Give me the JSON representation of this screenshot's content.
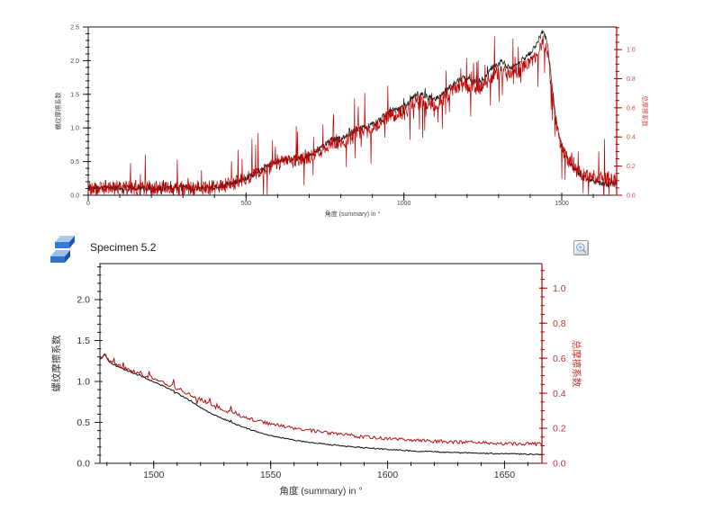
{
  "window": {
    "background": "#ffffff"
  },
  "bottom_panel": {
    "title": "Specimen 5.2",
    "icon": "specimen-cube-icon",
    "zoom_button_icon": "magnifier-plus-icon"
  },
  "chart_data": [
    {
      "id": "top",
      "type": "line",
      "title": "",
      "xlabel": "角度 (summary) in °",
      "ylabel_left": "螺纹摩擦系数",
      "ylabel_right": "总摩擦系数",
      "x_range": [
        0,
        1674
      ],
      "y_left_range": [
        0,
        2.5
      ],
      "y_right_range": [
        0,
        1.155
      ],
      "x_ticks": [
        0,
        500,
        1000,
        1500
      ],
      "x_minor_step": 100,
      "y_left_ticks": [
        0,
        0.5,
        1,
        1.5,
        2,
        2.5
      ],
      "y_left_minor_step": 0.1,
      "y_right_ticks": [
        0,
        0.2,
        0.4,
        0.6,
        0.8,
        1
      ],
      "y_right_minor_step": 0.05,
      "grid": false,
      "legend": "none",
      "colors": {
        "axis": "#1a1a1a",
        "axis_right": "#b40000",
        "tick": "#474747",
        "tick_right": "#d04545"
      },
      "series": [
        {
          "name": "螺纹摩擦系数",
          "axis": "left",
          "color": "#171717",
          "width": 0.7,
          "noise_amp": 0.045,
          "spike_prob": 0.04,
          "spike_amp": 0.16,
          "step": 1.3,
          "seed": 11,
          "trend": [
            [
              0,
              0.11
            ],
            [
              60,
              0.105
            ],
            [
              120,
              0.115
            ],
            [
              180,
              0.105
            ],
            [
              240,
              0.11
            ],
            [
              300,
              0.115
            ],
            [
              360,
              0.11
            ],
            [
              410,
              0.12
            ],
            [
              450,
              0.17
            ],
            [
              490,
              0.24
            ],
            [
              520,
              0.3
            ],
            [
              550,
              0.38
            ],
            [
              590,
              0.48
            ],
            [
              620,
              0.53
            ],
            [
              670,
              0.55
            ],
            [
              700,
              0.6
            ],
            [
              740,
              0.72
            ],
            [
              770,
              0.82
            ],
            [
              810,
              0.86
            ],
            [
              850,
              0.97
            ],
            [
              890,
              1.03
            ],
            [
              920,
              1.1
            ],
            [
              950,
              1.25
            ],
            [
              980,
              1.28
            ],
            [
              1010,
              1.35
            ],
            [
              1040,
              1.5
            ],
            [
              1070,
              1.48
            ],
            [
              1100,
              1.42
            ],
            [
              1130,
              1.55
            ],
            [
              1160,
              1.67
            ],
            [
              1190,
              1.75
            ],
            [
              1220,
              1.68
            ],
            [
              1250,
              1.72
            ],
            [
              1280,
              1.9
            ],
            [
              1310,
              1.98
            ],
            [
              1340,
              1.88
            ],
            [
              1370,
              2.0
            ],
            [
              1400,
              2.1
            ],
            [
              1425,
              2.3
            ],
            [
              1442,
              2.45
            ],
            [
              1455,
              2.25
            ],
            [
              1468,
              1.7
            ],
            [
              1478,
              1.25
            ],
            [
              1490,
              0.92
            ],
            [
              1502,
              0.72
            ],
            [
              1518,
              0.55
            ],
            [
              1538,
              0.4
            ],
            [
              1562,
              0.29
            ],
            [
              1592,
              0.22
            ],
            [
              1628,
              0.17
            ],
            [
              1674,
              0.15
            ]
          ]
        },
        {
          "name": "总摩擦系数",
          "axis": "right",
          "color": "#c00000",
          "width": 0.7,
          "noise_amp": 0.05,
          "spike_prob": 0.09,
          "spike_amp": 0.24,
          "step": 1.3,
          "seed": 29,
          "trend": [
            [
              0,
              0.05
            ],
            [
              60,
              0.05
            ],
            [
              120,
              0.05
            ],
            [
              180,
              0.05
            ],
            [
              240,
              0.05
            ],
            [
              300,
              0.05
            ],
            [
              360,
              0.05
            ],
            [
              410,
              0.055
            ],
            [
              450,
              0.075
            ],
            [
              490,
              0.105
            ],
            [
              520,
              0.13
            ],
            [
              550,
              0.165
            ],
            [
              590,
              0.21
            ],
            [
              620,
              0.23
            ],
            [
              670,
              0.24
            ],
            [
              700,
              0.26
            ],
            [
              740,
              0.31
            ],
            [
              770,
              0.355
            ],
            [
              810,
              0.37
            ],
            [
              850,
              0.42
            ],
            [
              890,
              0.445
            ],
            [
              920,
              0.475
            ],
            [
              950,
              0.54
            ],
            [
              980,
              0.555
            ],
            [
              1010,
              0.585
            ],
            [
              1040,
              0.65
            ],
            [
              1070,
              0.64
            ],
            [
              1100,
              0.615
            ],
            [
              1130,
              0.67
            ],
            [
              1160,
              0.72
            ],
            [
              1190,
              0.755
            ],
            [
              1220,
              0.725
            ],
            [
              1250,
              0.745
            ],
            [
              1280,
              0.82
            ],
            [
              1310,
              0.855
            ],
            [
              1340,
              0.81
            ],
            [
              1370,
              0.865
            ],
            [
              1400,
              0.905
            ],
            [
              1425,
              0.99
            ],
            [
              1442,
              1.06
            ],
            [
              1455,
              0.97
            ],
            [
              1468,
              0.73
            ],
            [
              1478,
              0.54
            ],
            [
              1490,
              0.4
            ],
            [
              1502,
              0.32
            ],
            [
              1518,
              0.25
            ],
            [
              1538,
              0.19
            ],
            [
              1562,
              0.15
            ],
            [
              1592,
              0.128
            ],
            [
              1628,
              0.115
            ],
            [
              1674,
              0.11
            ]
          ]
        }
      ]
    },
    {
      "id": "bottom",
      "type": "line",
      "title": "Specimen 5.2",
      "xlabel": "角度 (summary) in °",
      "ylabel_left": "螺纹摩擦系数",
      "ylabel_right": "总摩擦系数",
      "x_range": [
        1477,
        1666
      ],
      "y_left_range": [
        0,
        2.44
      ],
      "y_right_range": [
        0,
        1.14
      ],
      "x_ticks": [
        1500,
        1550,
        1600,
        1650
      ],
      "x_minor_step": 10,
      "y_left_ticks": [
        0,
        0.5,
        1,
        1.5,
        2
      ],
      "y_left_minor_step": 0.1,
      "y_right_ticks": [
        0,
        0.2,
        0.4,
        0.6,
        0.8,
        1
      ],
      "y_right_minor_step": 0.05,
      "grid": false,
      "legend": "none",
      "colors": {
        "axis": "#1a1a1a",
        "axis_right": "#b40000",
        "tick": "#333333",
        "tick_right": "#c03030"
      },
      "series": [
        {
          "name": "螺纹摩擦系数",
          "axis": "left",
          "color": "#1b1b1b",
          "width": 1.1,
          "noise_amp": 0.007,
          "spike_prob": 0.05,
          "spike_amp": 0.03,
          "spike_range": [
            1477,
            1545
          ],
          "step": 0.5,
          "seed": 5,
          "trend": [
            [
              1477,
              1.27
            ],
            [
              1479,
              1.33
            ],
            [
              1481,
              1.24
            ],
            [
              1484,
              1.19
            ],
            [
              1487,
              1.15
            ],
            [
              1490,
              1.12
            ],
            [
              1494,
              1.07
            ],
            [
              1498,
              1.02
            ],
            [
              1502,
              0.97
            ],
            [
              1506,
              0.92
            ],
            [
              1510,
              0.86
            ],
            [
              1514,
              0.79
            ],
            [
              1518,
              0.72
            ],
            [
              1522,
              0.65
            ],
            [
              1526,
              0.59
            ],
            [
              1530,
              0.54
            ],
            [
              1534,
              0.49
            ],
            [
              1538,
              0.445
            ],
            [
              1542,
              0.405
            ],
            [
              1546,
              0.37
            ],
            [
              1550,
              0.34
            ],
            [
              1555,
              0.31
            ],
            [
              1560,
              0.285
            ],
            [
              1565,
              0.263
            ],
            [
              1570,
              0.245
            ],
            [
              1575,
              0.23
            ],
            [
              1580,
              0.215
            ],
            [
              1585,
              0.2
            ],
            [
              1590,
              0.19
            ],
            [
              1595,
              0.18
            ],
            [
              1600,
              0.17
            ],
            [
              1606,
              0.16
            ],
            [
              1612,
              0.15
            ],
            [
              1618,
              0.143
            ],
            [
              1624,
              0.137
            ],
            [
              1630,
              0.131
            ],
            [
              1636,
              0.126
            ],
            [
              1642,
              0.121
            ],
            [
              1648,
              0.117
            ],
            [
              1654,
              0.114
            ],
            [
              1660,
              0.112
            ],
            [
              1666,
              0.11
            ]
          ]
        },
        {
          "name": "总摩擦系数",
          "axis": "right",
          "color": "#b51010",
          "width": 1.0,
          "noise_amp": 0.01,
          "spike_prob": 0.09,
          "spike_amp": 0.05,
          "spike_range": [
            1477,
            1535
          ],
          "step": 0.5,
          "seed": 17,
          "trend": [
            [
              1477,
              0.595
            ],
            [
              1479,
              0.625
            ],
            [
              1481,
              0.585
            ],
            [
              1484,
              0.565
            ],
            [
              1487,
              0.545
            ],
            [
              1490,
              0.53
            ],
            [
              1494,
              0.512
            ],
            [
              1498,
              0.493
            ],
            [
              1502,
              0.474
            ],
            [
              1506,
              0.452
            ],
            [
              1510,
              0.428
            ],
            [
              1514,
              0.403
            ],
            [
              1518,
              0.378
            ],
            [
              1522,
              0.352
            ],
            [
              1526,
              0.328
            ],
            [
              1530,
              0.305
            ],
            [
              1534,
              0.285
            ],
            [
              1538,
              0.267
            ],
            [
              1542,
              0.251
            ],
            [
              1546,
              0.237
            ],
            [
              1550,
              0.225
            ],
            [
              1555,
              0.212
            ],
            [
              1560,
              0.2
            ],
            [
              1565,
              0.19
            ],
            [
              1570,
              0.181
            ],
            [
              1575,
              0.172
            ],
            [
              1580,
              0.165
            ],
            [
              1585,
              0.158
            ],
            [
              1590,
              0.152
            ],
            [
              1595,
              0.146
            ],
            [
              1600,
              0.141
            ],
            [
              1606,
              0.136
            ],
            [
              1612,
              0.131
            ],
            [
              1618,
              0.127
            ],
            [
              1624,
              0.124
            ],
            [
              1630,
              0.121
            ],
            [
              1636,
              0.118
            ],
            [
              1642,
              0.115
            ],
            [
              1648,
              0.113
            ],
            [
              1654,
              0.111
            ],
            [
              1660,
              0.11
            ],
            [
              1666,
              0.109
            ]
          ]
        }
      ]
    }
  ]
}
